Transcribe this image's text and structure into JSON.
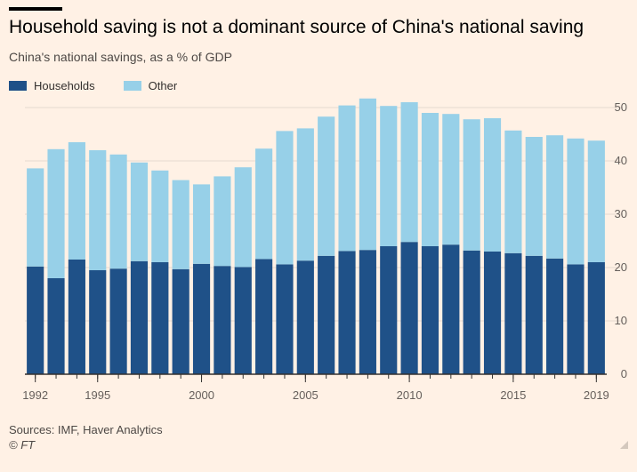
{
  "header": {
    "title": "Household saving is not a dominant source of China's national saving",
    "subtitle": "China's national savings, as a % of GDP"
  },
  "legend": {
    "households": "Households",
    "other": "Other"
  },
  "footer": {
    "sources": "Sources: IMF, Haver Analytics",
    "credit": "© FT"
  },
  "colors": {
    "households": "#1f5188",
    "other": "#97d0e8",
    "grid": "#e6d9ce",
    "axis": "#33302e",
    "background": "#fff1e5"
  },
  "chart_data": {
    "type": "bar",
    "stacked": true,
    "categories": [
      1992,
      1993,
      1994,
      1995,
      1996,
      1997,
      1998,
      1999,
      2000,
      2001,
      2002,
      2003,
      2004,
      2005,
      2006,
      2007,
      2008,
      2009,
      2010,
      2011,
      2012,
      2013,
      2014,
      2015,
      2016,
      2017,
      2018,
      2019
    ],
    "series": [
      {
        "name": "Households",
        "values": [
          20.2,
          18.0,
          21.5,
          19.5,
          19.8,
          21.2,
          21.0,
          19.7,
          20.7,
          20.3,
          20.1,
          21.6,
          20.6,
          21.3,
          22.2,
          23.1,
          23.3,
          24.0,
          24.8,
          24.0,
          24.3,
          23.2,
          23.0,
          22.7,
          22.2,
          21.7,
          20.6,
          21.0
        ]
      },
      {
        "name": "Other",
        "values": [
          18.4,
          24.2,
          22.0,
          22.5,
          21.4,
          18.5,
          17.2,
          16.7,
          14.9,
          16.8,
          18.7,
          20.7,
          25.0,
          24.8,
          26.1,
          27.3,
          28.4,
          26.3,
          26.2,
          25.0,
          24.5,
          24.6,
          25.0,
          23.0,
          22.3,
          23.1,
          23.6,
          22.8
        ]
      }
    ],
    "xticks": [
      "1992",
      "1995",
      "2000",
      "2005",
      "2010",
      "2015",
      "2019"
    ],
    "yticks": [
      "0",
      "10",
      "20",
      "30",
      "40",
      "50"
    ],
    "ylim": [
      0,
      50
    ],
    "legend_position": "top-left",
    "y_axis_side": "right",
    "grid": true
  }
}
